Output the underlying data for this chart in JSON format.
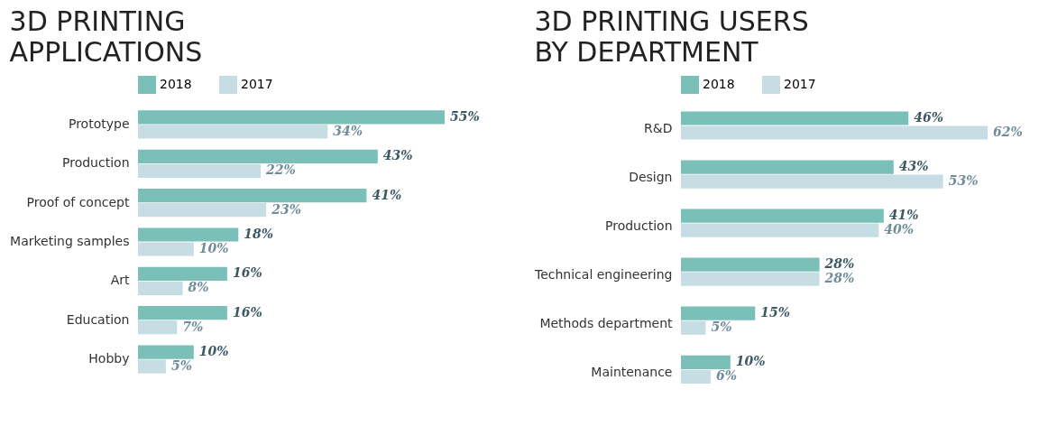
{
  "chart_data": [
    {
      "type": "bar",
      "orientation": "horizontal",
      "title": "3D PRINTING\nAPPLICATIONS",
      "legend": "top left",
      "categories": [
        "Prototype",
        "Production",
        "Proof of concept",
        "Marketing samples",
        "Art",
        "Education",
        "Hobby"
      ],
      "series": [
        {
          "name": "2018",
          "color": "#7bbfb9",
          "values": [
            55,
            43,
            41,
            18,
            16,
            16,
            10
          ],
          "value_labels": [
            "55%",
            "43%",
            "41%",
            "18%",
            "16%",
            "16%",
            "10%"
          ]
        },
        {
          "name": "2017",
          "color": "#c5dde3",
          "values": [
            34,
            22,
            23,
            10,
            8,
            7,
            5
          ],
          "value_labels": [
            "34%",
            "22%",
            "23%",
            "10%",
            "8%",
            "7%",
            "5%"
          ]
        }
      ]
    },
    {
      "type": "bar",
      "orientation": "horizontal",
      "title": "3D PRINTING USERS\nBY DEPARTMENT",
      "legend": "top left",
      "categories": [
        "R&D",
        "Design",
        "Production",
        "Technical engineering",
        "Methods department",
        "Maintenance"
      ],
      "series": [
        {
          "name": "2018",
          "color": "#7bbfb9",
          "values": [
            46,
            43,
            41,
            28,
            15,
            10
          ],
          "value_labels": [
            "46%",
            "43%",
            "41%",
            "28%",
            "15%",
            "10%"
          ]
        },
        {
          "name": "2017",
          "color": "#c5dde3",
          "values": [
            62,
            53,
            40,
            28,
            5,
            6
          ],
          "value_labels": [
            "62%",
            "53%",
            "40%",
            "28%",
            "5%",
            "6%"
          ]
        }
      ]
    }
  ]
}
